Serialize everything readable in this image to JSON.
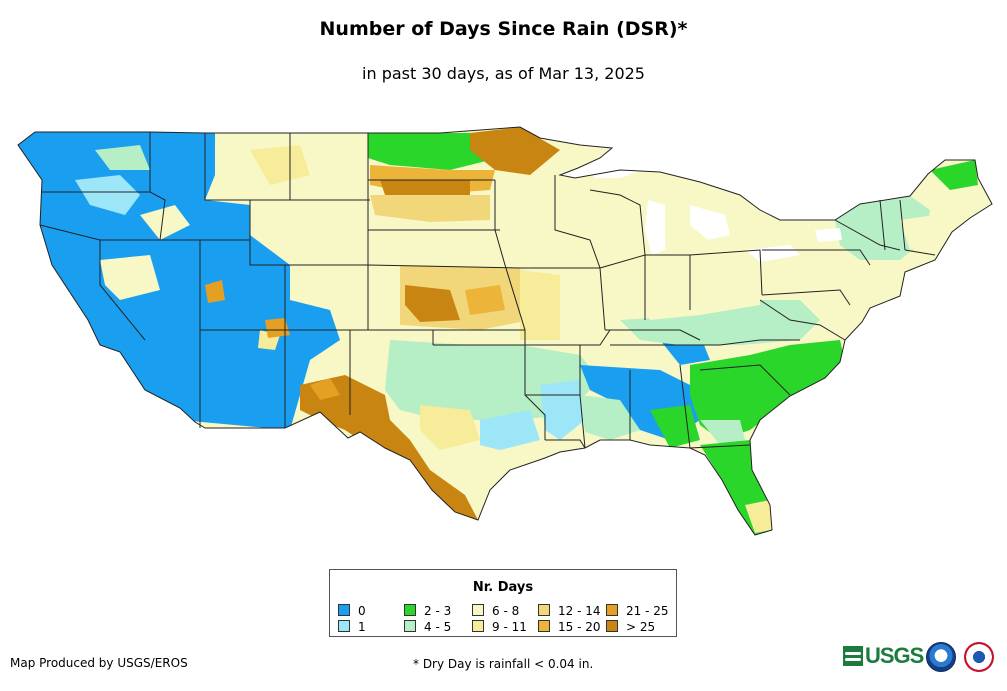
{
  "title": "Number of Days Since Rain (DSR)*",
  "subtitle": "in past 30 days, as of Mar 13, 2025",
  "legend": {
    "title": "Nr. Days",
    "items": [
      {
        "label": "0",
        "color": "#1a9ef0"
      },
      {
        "label": "1",
        "color": "#9ce6f8"
      },
      {
        "label": "2 - 3",
        "color": "#2ad62a"
      },
      {
        "label": "4 - 5",
        "color": "#b6eec6"
      },
      {
        "label": "6 - 8",
        "color": "#f8f7c6"
      },
      {
        "label": "9 - 11",
        "color": "#f6ec9a"
      },
      {
        "label": "12 - 14",
        "color": "#f2d77a"
      },
      {
        "label": "15 - 20",
        "color": "#ecb53a"
      },
      {
        "label": "21 - 25",
        "color": "#e3a022"
      },
      {
        "label": "> 25",
        "color": "#c98511"
      }
    ]
  },
  "footer": {
    "producer": "Map Produced by USGS/EROS",
    "footnote": "* Dry Day is rainfall < 0.04 in."
  },
  "logos": {
    "usgs_text": "USGS",
    "noaa": "noaa-logo",
    "nws": "nws-logo"
  }
}
